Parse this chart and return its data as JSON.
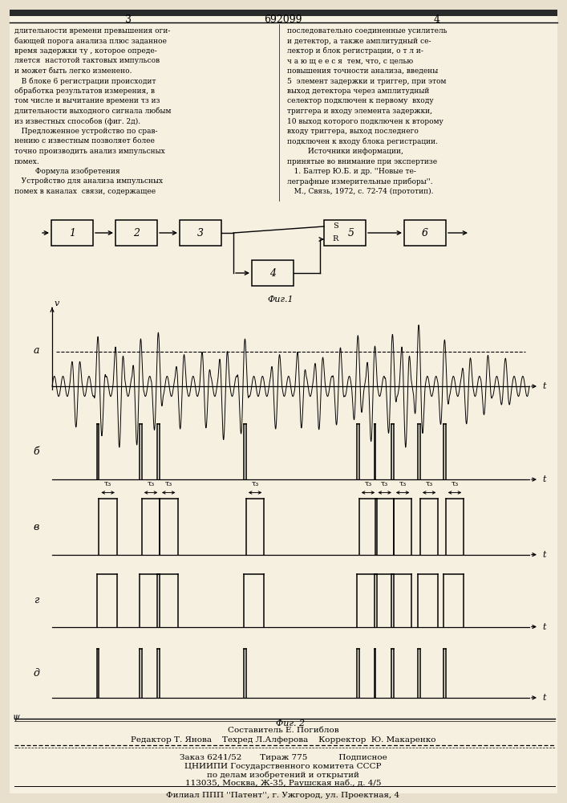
{
  "bg_color": "#e8e0cc",
  "page_left": "3",
  "page_right": "4",
  "patent_num": "692099",
  "left_col_lines": [
    "длительности времени превышения оги-",
    "бающей порога анализа плюс заданное",
    "время задержки τу , которое опреде-",
    "ляется  настотой тактовых импульсов",
    "и может быть легко изменено.",
    "   В блоке 6 регистрации происходит",
    "обработка результатов измерения, в",
    "том числе и вычитание времени τз из",
    "длительности выходного сигнала любым",
    "из известных способов (фиг. 2д).",
    "   Предложенное устройство по срав-",
    "нению с известным позволяет более",
    "точно производить анализ импульсных",
    "помех.",
    "         Формула изобретения",
    "   Устройство для анализа импульсных",
    "помех в каналах  связи, содержащее"
  ],
  "right_col_lines": [
    "последовательно соединенные усилитель",
    "и детектор, а также амплитудный се-",
    "лектор и блок регистрации, о т л и-",
    "ч а ю щ е е с я  тем, что, с целью",
    "повышения точности анализа, введены",
    "5  элемент задержки и триггер, при этом",
    "выход детектора через амплитудный",
    "селектор подключен к первому  входу",
    "триггера и входу элемента задержки,",
    "10 выход которого подключен к второму",
    "входу триггера, выход последнего",
    "подключен к входу блока регистрации.",
    "         Источники информации,",
    "принятые во внимание при экспертизе",
    "   1. Балтер Ю.Б. и др. ''Новые те-",
    "леграфные измерительные приборы''.",
    "   М., Связь, 1972, с. 72-74 (прототип)."
  ],
  "footer1": "Составитель Е. Погиблов",
  "footer2": "Редактор Т. Янова    Техред Л.Алферова    Корректор  Ю. Макаренко",
  "footer3": "Заказ 6241/52       Тираж 775            Подписное",
  "footer4": "ЦНИИПИ Государственного комитета СССР",
  "footer5": "по делам изобретений и открытий",
  "footer6": "113035, Москва, Ж-35, Раушская наб., д. 4/5",
  "footer7": "Филиал ППП ''Патент'', г. Ужгород, ул. Проектная, 4"
}
